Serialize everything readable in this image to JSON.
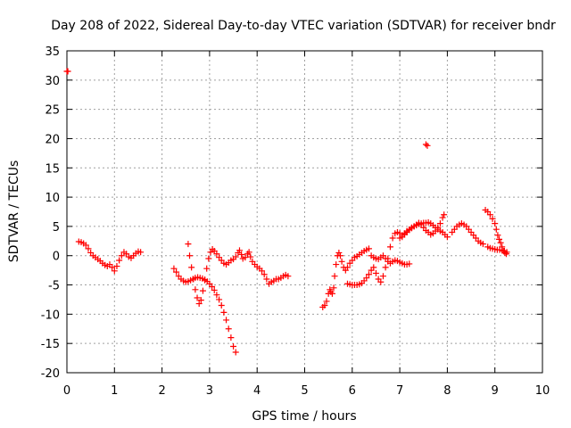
{
  "chart_data": {
    "type": "scatter",
    "title": "Day 208 of 2022, Sidereal Day-to-day VTEC variation (SDTVAR) for receiver bndr",
    "xlabel": "GPS time / hours",
    "ylabel": "SDTVAR / TECUs",
    "xlim": [
      0,
      10
    ],
    "ylim": [
      -20,
      35
    ],
    "xticks": [
      0,
      1,
      2,
      3,
      4,
      5,
      6,
      7,
      8,
      9,
      10
    ],
    "yticks": [
      -20,
      -15,
      -10,
      -5,
      0,
      5,
      10,
      15,
      20,
      25,
      30,
      35
    ],
    "grid": true,
    "marker": "+",
    "color": "#ff0000",
    "series": [
      {
        "name": "sdtvar",
        "points": [
          [
            0.0,
            31.5
          ],
          [
            0.02,
            31.5
          ],
          [
            0.25,
            2.4
          ],
          [
            0.3,
            2.3
          ],
          [
            0.35,
            2.1
          ],
          [
            0.4,
            1.8
          ],
          [
            0.45,
            1.2
          ],
          [
            0.5,
            0.5
          ],
          [
            0.55,
            0.0
          ],
          [
            0.6,
            -0.3
          ],
          [
            0.65,
            -0.6
          ],
          [
            0.7,
            -0.9
          ],
          [
            0.75,
            -1.3
          ],
          [
            0.8,
            -1.6
          ],
          [
            0.85,
            -1.8
          ],
          [
            0.9,
            -1.5
          ],
          [
            0.95,
            -2.0
          ],
          [
            1.0,
            -2.6
          ],
          [
            1.05,
            -1.8
          ],
          [
            1.1,
            -0.8
          ],
          [
            1.15,
            0.0
          ],
          [
            1.2,
            0.6
          ],
          [
            1.25,
            0.3
          ],
          [
            1.3,
            -0.2
          ],
          [
            1.35,
            -0.4
          ],
          [
            1.4,
            0.0
          ],
          [
            1.45,
            0.4
          ],
          [
            1.5,
            0.7
          ],
          [
            1.55,
            0.6
          ],
          [
            2.25,
            -2.2
          ],
          [
            2.3,
            -2.8
          ],
          [
            2.35,
            -3.5
          ],
          [
            2.4,
            -4.0
          ],
          [
            2.45,
            -4.3
          ],
          [
            2.5,
            -4.5
          ],
          [
            2.55,
            -4.4
          ],
          [
            2.6,
            -4.2
          ],
          [
            2.65,
            -4.0
          ],
          [
            2.7,
            -3.8
          ],
          [
            2.75,
            -3.7
          ],
          [
            2.8,
            -3.8
          ],
          [
            2.85,
            -3.9
          ],
          [
            2.9,
            -4.1
          ],
          [
            2.95,
            -4.4
          ],
          [
            3.0,
            -4.8
          ],
          [
            3.05,
            -5.3
          ],
          [
            3.1,
            -5.9
          ],
          [
            3.15,
            -6.7
          ],
          [
            3.2,
            -7.5
          ],
          [
            3.25,
            -8.5
          ],
          [
            3.3,
            -9.7
          ],
          [
            3.35,
            -11.0
          ],
          [
            3.4,
            -12.5
          ],
          [
            3.45,
            -14.0
          ],
          [
            3.5,
            -15.5
          ],
          [
            3.55,
            -16.5
          ],
          [
            2.55,
            2.0
          ],
          [
            2.58,
            0.0
          ],
          [
            2.62,
            -2.0
          ],
          [
            2.66,
            -4.0
          ],
          [
            2.7,
            -5.8
          ],
          [
            2.74,
            -7.2
          ],
          [
            2.78,
            -8.2
          ],
          [
            2.82,
            -7.6
          ],
          [
            2.86,
            -6.0
          ],
          [
            2.9,
            -4.2
          ],
          [
            2.94,
            -2.2
          ],
          [
            2.98,
            -0.5
          ],
          [
            3.02,
            0.6
          ],
          [
            3.06,
            1.1
          ],
          [
            3.1,
            0.8
          ],
          [
            3.15,
            0.3
          ],
          [
            3.2,
            -0.3
          ],
          [
            3.25,
            -0.8
          ],
          [
            3.3,
            -1.3
          ],
          [
            3.35,
            -1.5
          ],
          [
            3.4,
            -1.2
          ],
          [
            3.45,
            -0.8
          ],
          [
            3.5,
            -0.6
          ],
          [
            3.55,
            -0.2
          ],
          [
            3.6,
            0.5
          ],
          [
            3.63,
            0.9
          ],
          [
            3.67,
            0.2
          ],
          [
            3.7,
            -0.5
          ],
          [
            3.75,
            -0.3
          ],
          [
            3.8,
            0.3
          ],
          [
            3.83,
            0.6
          ],
          [
            3.86,
            -0.2
          ],
          [
            3.9,
            -1.0
          ],
          [
            3.95,
            -1.5
          ],
          [
            4.0,
            -1.9
          ],
          [
            4.05,
            -2.2
          ],
          [
            4.1,
            -2.6
          ],
          [
            4.15,
            -3.2
          ],
          [
            4.2,
            -4.0
          ],
          [
            4.25,
            -4.8
          ],
          [
            4.3,
            -4.5
          ],
          [
            4.35,
            -4.3
          ],
          [
            4.4,
            -4.0
          ],
          [
            4.45,
            -4.0
          ],
          [
            4.5,
            -3.8
          ],
          [
            4.55,
            -3.5
          ],
          [
            4.6,
            -3.3
          ],
          [
            4.65,
            -3.5
          ],
          [
            5.38,
            -8.8
          ],
          [
            5.42,
            -8.5
          ],
          [
            5.46,
            -7.8
          ],
          [
            5.5,
            -6.5
          ],
          [
            5.53,
            -5.8
          ],
          [
            5.55,
            -6.2
          ],
          [
            5.58,
            -6.5
          ],
          [
            5.61,
            -5.5
          ],
          [
            5.63,
            -3.5
          ],
          [
            5.66,
            -1.5
          ],
          [
            5.69,
            0.0
          ],
          [
            5.72,
            0.5
          ],
          [
            5.75,
            0.0
          ],
          [
            5.78,
            -1.0
          ],
          [
            5.82,
            -2.0
          ],
          [
            5.86,
            -2.5
          ],
          [
            5.9,
            -2.0
          ],
          [
            5.95,
            -1.3
          ],
          [
            6.0,
            -0.8
          ],
          [
            6.05,
            -0.3
          ],
          [
            6.1,
            -0.1
          ],
          [
            6.15,
            0.2
          ],
          [
            6.2,
            0.5
          ],
          [
            6.25,
            0.8
          ],
          [
            6.3,
            1.0
          ],
          [
            6.35,
            1.2
          ],
          [
            5.9,
            -4.8
          ],
          [
            5.95,
            -4.9
          ],
          [
            6.0,
            -5.0
          ],
          [
            6.05,
            -5.0
          ],
          [
            6.1,
            -5.0
          ],
          [
            6.15,
            -4.9
          ],
          [
            6.2,
            -4.7
          ],
          [
            6.25,
            -4.3
          ],
          [
            6.3,
            -3.8
          ],
          [
            6.35,
            -3.2
          ],
          [
            6.4,
            -2.5
          ],
          [
            6.45,
            -2.0
          ],
          [
            6.5,
            -3.0
          ],
          [
            6.55,
            -4.0
          ],
          [
            6.6,
            -4.5
          ],
          [
            6.65,
            -3.5
          ],
          [
            6.7,
            -2.0
          ],
          [
            6.75,
            -0.5
          ],
          [
            6.8,
            1.5
          ],
          [
            6.85,
            3.0
          ],
          [
            6.9,
            3.8
          ],
          [
            6.95,
            4.0
          ],
          [
            7.0,
            3.8
          ],
          [
            7.05,
            3.5
          ],
          [
            7.1,
            3.8
          ],
          [
            7.15,
            4.2
          ],
          [
            7.2,
            4.5
          ],
          [
            7.25,
            4.8
          ],
          [
            7.3,
            5.0
          ],
          [
            7.35,
            5.2
          ],
          [
            7.4,
            5.4
          ],
          [
            7.45,
            5.5
          ],
          [
            7.5,
            5.6
          ],
          [
            7.55,
            5.6
          ],
          [
            7.6,
            5.7
          ],
          [
            7.65,
            5.5
          ],
          [
            7.7,
            5.2
          ],
          [
            7.75,
            4.8
          ],
          [
            7.8,
            4.5
          ],
          [
            7.85,
            4.2
          ],
          [
            7.9,
            4.0
          ],
          [
            7.95,
            3.6
          ],
          [
            8.0,
            3.2
          ],
          [
            6.4,
            0.0
          ],
          [
            6.45,
            -0.3
          ],
          [
            6.5,
            -0.5
          ],
          [
            6.55,
            -0.6
          ],
          [
            6.6,
            -0.3
          ],
          [
            6.65,
            0.0
          ],
          [
            6.7,
            -0.5
          ],
          [
            6.75,
            -1.0
          ],
          [
            6.8,
            -1.3
          ],
          [
            6.85,
            -1.0
          ],
          [
            6.9,
            -0.8
          ],
          [
            6.95,
            -0.9
          ],
          [
            7.0,
            -1.1
          ],
          [
            7.05,
            -1.3
          ],
          [
            7.1,
            -1.5
          ],
          [
            7.15,
            -1.5
          ],
          [
            7.2,
            -1.4
          ],
          [
            7.0,
            3.0
          ],
          [
            7.05,
            3.2
          ],
          [
            7.1,
            3.6
          ],
          [
            7.15,
            4.0
          ],
          [
            7.2,
            4.4
          ],
          [
            7.25,
            4.7
          ],
          [
            7.3,
            5.0
          ],
          [
            7.35,
            5.3
          ],
          [
            7.4,
            5.6
          ],
          [
            7.45,
            5.3
          ],
          [
            7.5,
            4.8
          ],
          [
            7.55,
            4.3
          ],
          [
            7.6,
            4.0
          ],
          [
            7.65,
            3.6
          ],
          [
            7.7,
            3.8
          ],
          [
            7.75,
            4.2
          ],
          [
            7.8,
            4.8
          ],
          [
            7.85,
            5.5
          ],
          [
            7.9,
            6.5
          ],
          [
            7.93,
            7.0
          ],
          [
            7.55,
            19.0
          ],
          [
            7.58,
            18.8
          ],
          [
            8.1,
            4.0
          ],
          [
            8.15,
            4.5
          ],
          [
            8.2,
            5.0
          ],
          [
            8.25,
            5.3
          ],
          [
            8.3,
            5.5
          ],
          [
            8.35,
            5.3
          ],
          [
            8.4,
            5.0
          ],
          [
            8.45,
            4.5
          ],
          [
            8.5,
            4.0
          ],
          [
            8.55,
            3.5
          ],
          [
            8.6,
            3.0
          ],
          [
            8.65,
            2.5
          ],
          [
            8.7,
            2.2
          ],
          [
            8.75,
            2.0
          ],
          [
            8.8,
            7.8
          ],
          [
            8.85,
            7.5
          ],
          [
            8.9,
            7.0
          ],
          [
            8.95,
            6.3
          ],
          [
            9.0,
            5.5
          ],
          [
            9.03,
            4.5
          ],
          [
            9.06,
            3.5
          ],
          [
            9.09,
            2.8
          ],
          [
            9.12,
            2.2
          ],
          [
            9.15,
            1.5
          ],
          [
            9.18,
            0.8
          ],
          [
            9.21,
            0.5
          ],
          [
            9.24,
            0.3
          ],
          [
            8.85,
            1.5
          ],
          [
            8.9,
            1.3
          ],
          [
            8.95,
            1.2
          ],
          [
            9.0,
            1.1
          ],
          [
            9.05,
            1.0
          ],
          [
            9.1,
            1.0
          ],
          [
            9.15,
            0.9
          ],
          [
            9.2,
            0.8
          ],
          [
            9.25,
            0.6
          ]
        ]
      }
    ]
  }
}
